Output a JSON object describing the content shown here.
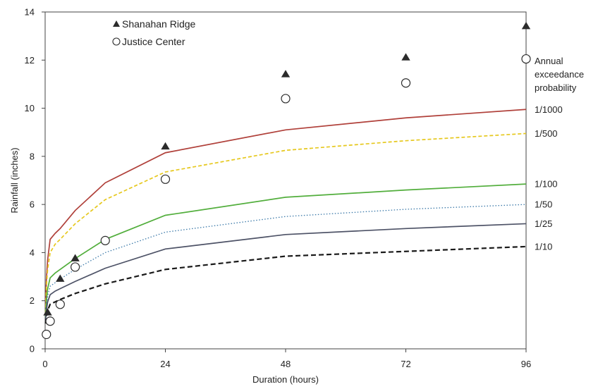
{
  "chart_data": {
    "type": "line",
    "title": "",
    "xlabel": "Duration (hours)",
    "ylabel": "Rainfall (inches)",
    "xlim": [
      0,
      96
    ],
    "ylim": [
      0,
      14
    ],
    "xticks": [
      0,
      24,
      48,
      72,
      96
    ],
    "yticks": [
      0,
      2,
      4,
      6,
      8,
      10,
      12,
      14
    ],
    "grid": false,
    "aep_title": [
      "Annual",
      "exceedance",
      "probability"
    ],
    "series": [
      {
        "name": "1/1000",
        "color": "#b0403a",
        "dash": "solid",
        "x": [
          0.083,
          0.25,
          0.5,
          1,
          2,
          3,
          6,
          12,
          24,
          48,
          72,
          96
        ],
        "y": [
          1.7,
          2.9,
          3.7,
          4.55,
          4.8,
          5.0,
          5.75,
          6.9,
          8.15,
          9.1,
          9.6,
          9.95
        ]
      },
      {
        "name": "1/500",
        "color": "#e6c81e",
        "dash": "dashed",
        "x": [
          0.083,
          0.25,
          0.5,
          1,
          2,
          3,
          6,
          12,
          24,
          48,
          72,
          96
        ],
        "y": [
          1.5,
          2.6,
          3.3,
          4.0,
          4.35,
          4.55,
          5.2,
          6.2,
          7.35,
          8.25,
          8.65,
          8.95
        ]
      },
      {
        "name": "1/100",
        "color": "#52ae3c",
        "dash": "solid",
        "x": [
          0.083,
          0.25,
          0.5,
          1,
          2,
          3,
          6,
          12,
          24,
          48,
          72,
          96
        ],
        "y": [
          1.3,
          2.0,
          2.5,
          2.95,
          3.15,
          3.3,
          3.75,
          4.55,
          5.55,
          6.3,
          6.6,
          6.85
        ]
      },
      {
        "name": "1/50",
        "color": "#3a78a8",
        "dash": "dotted",
        "x": [
          0.083,
          0.25,
          0.5,
          1,
          2,
          3,
          6,
          12,
          24,
          48,
          72,
          96
        ],
        "y": [
          1.2,
          1.8,
          2.2,
          2.6,
          2.75,
          2.9,
          3.3,
          4.0,
          4.85,
          5.5,
          5.8,
          6.0
        ]
      },
      {
        "name": "1/25",
        "color": "#4d5266",
        "dash": "solid",
        "x": [
          0.083,
          0.25,
          0.5,
          1,
          2,
          3,
          6,
          12,
          24,
          48,
          72,
          96
        ],
        "y": [
          1.15,
          1.6,
          1.95,
          2.25,
          2.4,
          2.5,
          2.8,
          3.35,
          4.15,
          4.75,
          5.0,
          5.2
        ]
      },
      {
        "name": "1/10",
        "color": "#1a1a1a",
        "dash": "dashed",
        "x": [
          0.083,
          0.25,
          0.5,
          1,
          2,
          3,
          6,
          12,
          24,
          48,
          72,
          96
        ],
        "y": [
          1.05,
          1.35,
          1.6,
          1.85,
          1.95,
          2.05,
          2.3,
          2.7,
          3.3,
          3.85,
          4.05,
          4.25
        ]
      }
    ],
    "observations": [
      {
        "name": "Shanahan Ridge",
        "marker": "triangle",
        "x": [
          0.5,
          3,
          6,
          24,
          48,
          72,
          96
        ],
        "y": [
          1.5,
          2.9,
          3.75,
          8.4,
          11.4,
          12.1,
          13.4
        ]
      },
      {
        "name": "Justice Center",
        "marker": "circle",
        "x": [
          0.25,
          1,
          3,
          6,
          12,
          24,
          48,
          72,
          96
        ],
        "y": [
          0.6,
          1.15,
          1.85,
          3.4,
          4.5,
          7.05,
          10.4,
          11.05,
          12.05
        ]
      }
    ]
  }
}
